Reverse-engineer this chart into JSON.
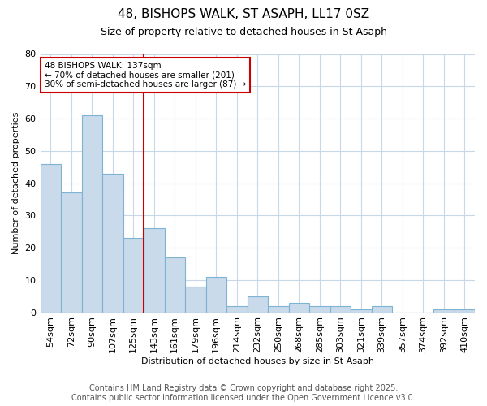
{
  "title1": "48, BISHOPS WALK, ST ASAPH, LL17 0SZ",
  "title2": "Size of property relative to detached houses in St Asaph",
  "xlabel": "Distribution of detached houses by size in St Asaph",
  "ylabel": "Number of detached properties",
  "footer1": "Contains HM Land Registry data © Crown copyright and database right 2025.",
  "footer2": "Contains public sector information licensed under the Open Government Licence v3.0.",
  "annotation_line1": "48 BISHOPS WALK: 137sqm",
  "annotation_line2": "← 70% of detached houses are smaller (201)",
  "annotation_line3": "30% of semi-detached houses are larger (87) →",
  "bar_labels": [
    "54sqm",
    "72sqm",
    "90sqm",
    "107sqm",
    "125sqm",
    "143sqm",
    "161sqm",
    "179sqm",
    "196sqm",
    "214sqm",
    "232sqm",
    "250sqm",
    "268sqm",
    "285sqm",
    "303sqm",
    "321sqm",
    "339sqm",
    "357sqm",
    "374sqm",
    "392sqm",
    "410sqm"
  ],
  "bar_values": [
    46,
    37,
    61,
    43,
    23,
    26,
    17,
    8,
    11,
    2,
    5,
    2,
    3,
    2,
    2,
    1,
    2,
    0,
    0,
    1,
    1
  ],
  "bar_color": "#c9daea",
  "bar_edge_color": "#7fb3d3",
  "vline_x": 4.5,
  "vline_color": "#cc0000",
  "background_color": "#ffffff",
  "grid_color": "#c8d8e8",
  "ylim": [
    0,
    80
  ],
  "yticks": [
    0,
    10,
    20,
    30,
    40,
    50,
    60,
    70,
    80
  ],
  "title1_fontsize": 11,
  "title2_fontsize": 9,
  "axis_fontsize": 8,
  "tick_fontsize": 8,
  "footer_fontsize": 7
}
